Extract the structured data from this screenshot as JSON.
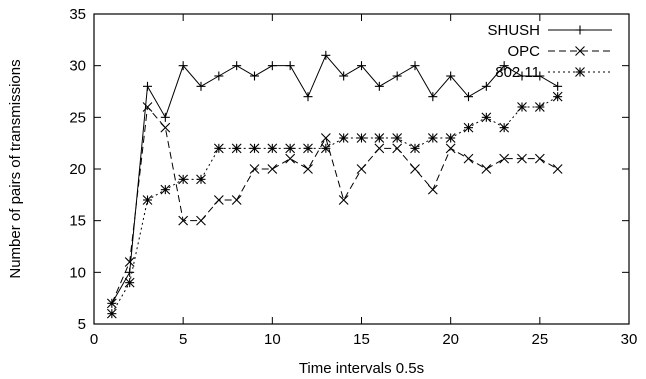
{
  "chart_data": {
    "type": "line",
    "xlabel": "Time intervals 0.5s",
    "ylabel": "Number of pairs of transmissions",
    "xlim": [
      0,
      30
    ],
    "ylim": [
      5,
      35
    ],
    "xticks": [
      0,
      5,
      10,
      15,
      20,
      25,
      30
    ],
    "yticks": [
      5,
      10,
      15,
      20,
      25,
      30,
      35
    ],
    "grid": false,
    "legend_position": "top-right",
    "series": [
      {
        "name": "SHUSH",
        "line_style": "solid",
        "marker": "plus",
        "x": [
          1,
          2,
          3,
          4,
          5,
          6,
          7,
          8,
          9,
          10,
          11,
          12,
          13,
          14,
          15,
          16,
          17,
          18,
          19,
          20,
          21,
          22,
          23,
          24,
          25,
          26
        ],
        "y": [
          7,
          10,
          28,
          25,
          30,
          28,
          29,
          30,
          29,
          30,
          30,
          27,
          31,
          29,
          30,
          28,
          29,
          30,
          27,
          29,
          27,
          28,
          30,
          29,
          29,
          28
        ]
      },
      {
        "name": "OPC",
        "line_style": "dashed",
        "marker": "cross",
        "x": [
          1,
          2,
          3,
          4,
          5,
          6,
          7,
          8,
          9,
          10,
          11,
          12,
          13,
          14,
          15,
          16,
          17,
          18,
          19,
          20,
          21,
          22,
          23,
          24,
          25,
          26
        ],
        "y": [
          7,
          11,
          26,
          24,
          15,
          15,
          17,
          17,
          20,
          20,
          21,
          20,
          23,
          17,
          20,
          22,
          22,
          20,
          18,
          22,
          21,
          20,
          21,
          21,
          21,
          20
        ]
      },
      {
        "name": "802.11",
        "line_style": "dotted",
        "marker": "star",
        "x": [
          1,
          2,
          3,
          4,
          5,
          6,
          7,
          8,
          9,
          10,
          11,
          12,
          13,
          14,
          15,
          16,
          17,
          18,
          19,
          20,
          21,
          22,
          23,
          24,
          25,
          26
        ],
        "y": [
          6,
          9,
          17,
          18,
          19,
          19,
          22,
          22,
          22,
          22,
          22,
          22,
          22,
          23,
          23,
          23,
          23,
          22,
          23,
          23,
          24,
          25,
          24,
          26,
          26,
          27
        ]
      }
    ]
  }
}
